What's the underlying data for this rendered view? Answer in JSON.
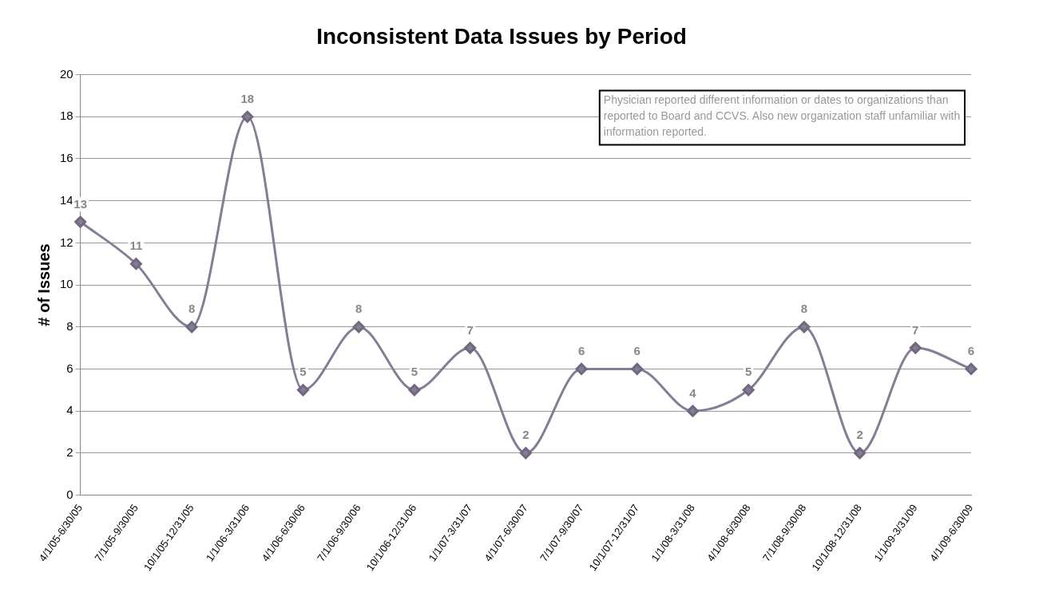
{
  "chart_data": {
    "type": "line",
    "title": "Inconsistent Data Issues by Period",
    "ylabel": "# of Issues",
    "categories": [
      "4/1/05-6/30/05",
      "7/1/05-9/30/05",
      "10/1/05-12/31/05",
      "1/1/06-3/31/06",
      "4/1/06-6/30/06",
      "7/1/06-9/30/06",
      "10/1/06-12/31/06",
      "1/1/07-3/31/07",
      "4/1/07-6/30/07",
      "7/1/07-9/30/07",
      "10/1/07-12/31/07",
      "1/1/08-3/31/08",
      "4/1/08-6/30/08",
      "7/1/08-9/30/08",
      "10/1/08-12/31/08",
      "1/1/09-3/31/09",
      "4/1/09-6/30/09"
    ],
    "series": [
      {
        "color": "#857d93",
        "values": [
          13,
          11,
          8,
          18,
          5,
          8,
          5,
          7,
          2,
          6,
          6,
          4,
          5,
          8,
          2,
          7,
          6
        ]
      }
    ],
    "ylim": [
      0,
      20
    ],
    "yticks": [
      0,
      2,
      4,
      6,
      8,
      10,
      12,
      14,
      16,
      18,
      20
    ],
    "grid": "y",
    "legend": false,
    "marker": "diamond",
    "line_style": "solid",
    "data_labels": true,
    "annotations": [
      "Physician reported different information or dates to organizations than reported to Board and CCVS. Also new organization staff unfamiliar with information reported."
    ]
  }
}
